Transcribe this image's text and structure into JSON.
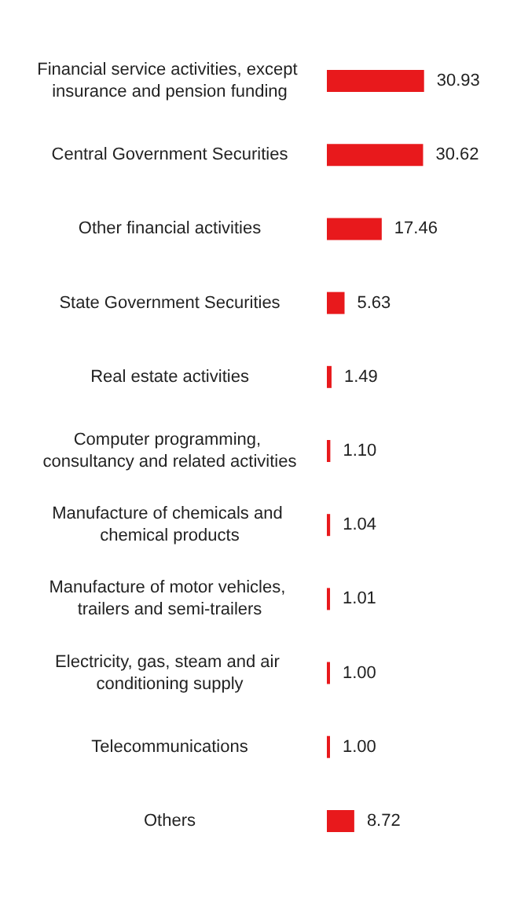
{
  "chart_data": {
    "type": "bar",
    "orientation": "horizontal",
    "color": "#e8191c",
    "categories": [
      "Financial service activities, except insurance and pension funding",
      "Central Government Securities",
      "Other financial activities",
      "State Government Securities",
      "Real estate activities",
      "Computer programming, consultancy and related activities",
      "Manufacture of chemicals and chemical products",
      "Manufacture of motor vehicles, trailers and semi-trailers",
      "Electricity, gas, steam and air conditioning supply",
      "Telecommunications",
      "Others"
    ],
    "values": [
      30.93,
      30.62,
      17.46,
      5.63,
      1.49,
      1.1,
      1.04,
      1.01,
      1.0,
      1.0,
      8.72
    ],
    "value_labels": [
      "30.93",
      "30.62",
      "17.46",
      "5.63",
      "1.49",
      "1.10",
      "1.04",
      "1.01",
      "1.00",
      "1.00",
      "8.72"
    ]
  }
}
